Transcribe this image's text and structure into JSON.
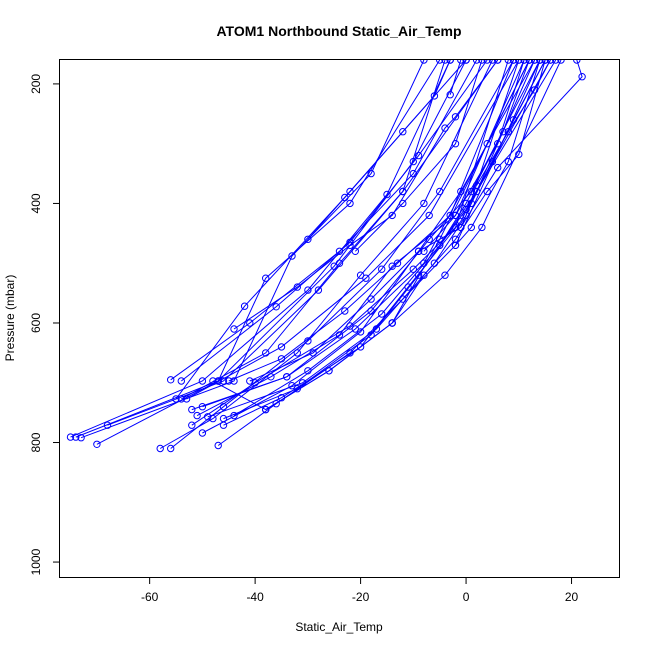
{
  "chart_data": {
    "type": "line",
    "title": "ATOM1 Northbound Static_Air_Temp",
    "xlabel": "Static_Air_Temp",
    "ylabel": "Pressure (mbar)",
    "xlim": [
      -77,
      29
    ],
    "ylim": [
      1025,
      160
    ],
    "y_reversed": true,
    "xticks": [
      -60,
      -40,
      -20,
      0,
      20
    ],
    "yticks": [
      200,
      400,
      600,
      800,
      1000
    ],
    "grid": false,
    "legend": "none",
    "color": "#0000ff",
    "marker": "open-circle",
    "series": [
      {
        "points": [
          [
            -75,
            791
          ],
          [
            -50,
            697
          ],
          [
            -30,
            545
          ],
          [
            -15,
            385
          ],
          [
            -3,
            160
          ]
        ]
      },
      {
        "points": [
          [
            -74,
            791
          ],
          [
            -47,
            697
          ],
          [
            -25,
            505
          ],
          [
            -10,
            330
          ],
          [
            0,
            160
          ]
        ]
      },
      {
        "points": [
          [
            -73,
            792
          ],
          [
            -44,
            697
          ],
          [
            -33,
            488
          ],
          [
            -18,
            350
          ],
          [
            -8,
            160
          ]
        ]
      },
      {
        "points": [
          [
            -70,
            803
          ],
          [
            -47,
            697
          ],
          [
            -38,
            525
          ],
          [
            -22,
            400
          ],
          [
            -5,
            160
          ]
        ]
      },
      {
        "points": [
          [
            -68,
            771
          ],
          [
            -46,
            697
          ],
          [
            -28,
            545
          ],
          [
            -12,
            380
          ],
          [
            -4,
            160
          ]
        ]
      },
      {
        "points": [
          [
            -58,
            810
          ],
          [
            -48,
            760
          ],
          [
            -32,
            650
          ],
          [
            -20,
            520
          ],
          [
            -8,
            400
          ],
          [
            5,
            160
          ]
        ]
      },
      {
        "points": [
          [
            -56,
            810
          ],
          [
            -46,
            740
          ],
          [
            -30,
            630
          ],
          [
            -16,
            510
          ],
          [
            -5,
            380
          ],
          [
            9,
            160
          ]
        ]
      },
      {
        "points": [
          [
            -56,
            695
          ],
          [
            -41,
            600
          ],
          [
            -24,
            480
          ],
          [
            -10,
            350
          ],
          [
            2,
            160
          ]
        ]
      },
      {
        "points": [
          [
            -55,
            727
          ],
          [
            -42,
            572
          ],
          [
            -23,
            390
          ],
          [
            -6,
            220
          ],
          [
            -3,
            160
          ]
        ]
      },
      {
        "points": [
          [
            -54,
            697
          ],
          [
            -36,
            573
          ],
          [
            -22,
            465
          ],
          [
            -9,
            320
          ],
          [
            4,
            160
          ]
        ]
      },
      {
        "points": [
          [
            -54,
            727
          ],
          [
            -38,
            650
          ],
          [
            -24,
            500
          ],
          [
            -12,
            380
          ],
          [
            6,
            160
          ]
        ]
      },
      {
        "points": [
          [
            -53,
            727
          ],
          [
            -35,
            640
          ],
          [
            -19,
            525
          ],
          [
            -7,
            420
          ],
          [
            10,
            160
          ]
        ]
      },
      {
        "points": [
          [
            -52,
            745
          ],
          [
            -34,
            690
          ],
          [
            -21,
            610
          ],
          [
            -8,
            500
          ],
          [
            4,
            300
          ],
          [
            12,
            160
          ]
        ]
      },
      {
        "points": [
          [
            -52,
            771
          ],
          [
            -40,
            700
          ],
          [
            -22,
            605
          ],
          [
            -10,
            510
          ],
          [
            -2,
            440
          ],
          [
            8,
            160
          ]
        ]
      },
      {
        "points": [
          [
            -51,
            755
          ],
          [
            -37,
            690
          ],
          [
            -24,
            620
          ],
          [
            -14,
            505
          ],
          [
            -2,
            420
          ],
          [
            11,
            160
          ]
        ]
      },
      {
        "points": [
          [
            -50,
            784
          ],
          [
            -33,
            705
          ],
          [
            -20,
            615
          ],
          [
            -9,
            480
          ],
          [
            -1,
            380
          ],
          [
            13,
            160
          ]
        ]
      },
      {
        "points": [
          [
            -50,
            740
          ],
          [
            -34,
            690
          ],
          [
            -18,
            580
          ],
          [
            -7,
            460
          ],
          [
            1,
            380
          ],
          [
            14,
            160
          ]
        ]
      },
      {
        "points": [
          [
            -49,
            757
          ],
          [
            -31,
            700
          ],
          [
            -17,
            610
          ],
          [
            -6,
            500
          ],
          [
            0,
            420
          ],
          [
            10,
            160
          ]
        ]
      },
      {
        "points": [
          [
            -48,
            697
          ],
          [
            -38,
            745
          ],
          [
            -26,
            680
          ],
          [
            -14,
            600
          ],
          [
            -5,
            460
          ],
          [
            12,
            160
          ]
        ]
      },
      {
        "points": [
          [
            -47,
            805
          ],
          [
            -36,
            735
          ],
          [
            -22,
            650
          ],
          [
            -12,
            560
          ],
          [
            -2,
            470
          ],
          [
            14,
            160
          ]
        ]
      },
      {
        "points": [
          [
            -46,
            771
          ],
          [
            -35,
            725
          ],
          [
            -20,
            640
          ],
          [
            -11,
            540
          ],
          [
            -1,
            430
          ],
          [
            15,
            160
          ]
        ]
      },
      {
        "points": [
          [
            -46,
            760
          ],
          [
            -32,
            710
          ],
          [
            -18,
            620
          ],
          [
            -9,
            520
          ],
          [
            0,
            410
          ],
          [
            16,
            160
          ]
        ]
      },
      {
        "points": [
          [
            -45,
            697
          ],
          [
            -35,
            660
          ],
          [
            -23,
            580
          ],
          [
            -13,
            500
          ],
          [
            -3,
            420
          ],
          [
            9,
            160
          ]
        ]
      },
      {
        "points": [
          [
            -44,
            755
          ],
          [
            -30,
            680
          ],
          [
            -16,
            585
          ],
          [
            -5,
            470
          ],
          [
            2,
            380
          ],
          [
            17,
            160
          ]
        ]
      },
      {
        "points": [
          [
            -41,
            697
          ],
          [
            -29,
            650
          ],
          [
            -18,
            560
          ],
          [
            -9,
            480
          ],
          [
            -1,
            440
          ],
          [
            13,
            160
          ]
        ]
      },
      {
        "points": [
          [
            -38,
            745
          ],
          [
            -26,
            680
          ],
          [
            -14,
            600
          ],
          [
            -4,
            520
          ],
          [
            3,
            440
          ],
          [
            18,
            160
          ]
        ]
      },
      {
        "points": [
          [
            -44,
            610
          ],
          [
            -32,
            540
          ],
          [
            -22,
            470
          ],
          [
            -14,
            420
          ],
          [
            -4,
            274
          ],
          [
            -2,
            255
          ],
          [
            6,
            160
          ]
        ]
      },
      {
        "points": [
          [
            -30,
            460
          ],
          [
            -22,
            380
          ],
          [
            -12,
            280
          ],
          [
            0,
            160
          ]
        ]
      },
      {
        "points": [
          [
            -21,
            480
          ],
          [
            -12,
            400
          ],
          [
            -2,
            300
          ],
          [
            3,
            160
          ]
        ]
      },
      {
        "points": [
          [
            -14,
            600
          ],
          [
            -8,
            520
          ],
          [
            -2,
            460
          ],
          [
            4,
            380
          ],
          [
            10,
            318
          ],
          [
            15,
            160
          ]
        ]
      },
      {
        "points": [
          [
            -8,
            480
          ],
          [
            -2,
            420
          ],
          [
            6,
            300
          ],
          [
            11,
            160
          ]
        ]
      },
      {
        "points": [
          [
            -5,
            470
          ],
          [
            0,
            400
          ],
          [
            7,
            280
          ],
          [
            12,
            160
          ]
        ]
      },
      {
        "points": [
          [
            -2,
            470
          ],
          [
            1,
            440
          ],
          [
            8,
            330
          ],
          [
            14,
            160
          ]
        ]
      },
      {
        "points": [
          [
            1,
            400
          ],
          [
            5,
            330
          ],
          [
            9,
            260
          ],
          [
            15,
            160
          ]
        ]
      },
      {
        "points": [
          [
            2,
            370
          ],
          [
            8,
            280
          ],
          [
            13,
            210
          ],
          [
            16,
            160
          ]
        ]
      },
      {
        "points": [
          [
            -1,
            440
          ],
          [
            6,
            340
          ],
          [
            22,
            188
          ],
          [
            21,
            160
          ]
        ]
      },
      {
        "points": [
          [
            -3,
            218
          ],
          [
            -1,
            160
          ]
        ]
      }
    ]
  }
}
